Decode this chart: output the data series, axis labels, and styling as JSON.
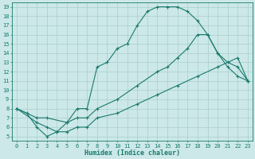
{
  "title": "",
  "xlabel": "Humidex (Indice chaleur)",
  "xlim": [
    -0.5,
    23.5
  ],
  "ylim": [
    4.5,
    19.5
  ],
  "xticks": [
    0,
    1,
    2,
    3,
    4,
    5,
    6,
    7,
    8,
    9,
    10,
    11,
    12,
    13,
    14,
    15,
    16,
    17,
    18,
    19,
    20,
    21,
    22,
    23
  ],
  "yticks": [
    5,
    6,
    7,
    8,
    9,
    10,
    11,
    12,
    13,
    14,
    15,
    16,
    17,
    18,
    19
  ],
  "bg_color": "#cce8e8",
  "line_color": "#1a7a6e",
  "grid_color": "#aacece",
  "lines": [
    {
      "x": [
        0,
        1,
        2,
        3,
        4,
        5,
        6,
        7,
        8,
        9,
        10,
        11,
        12,
        13,
        14,
        15,
        16,
        17,
        18,
        19,
        20,
        21,
        22,
        23
      ],
      "y": [
        8,
        7.5,
        6,
        5,
        5.5,
        6.5,
        8,
        8,
        12.5,
        13,
        14.5,
        15,
        17,
        18.5,
        19,
        19,
        19,
        18.5,
        17.5,
        16,
        14,
        12.5,
        11.5,
        11
      ]
    },
    {
      "x": [
        0,
        2,
        3,
        5,
        6,
        7,
        8,
        10,
        12,
        14,
        15,
        16,
        17,
        18,
        19,
        20,
        21,
        22,
        23
      ],
      "y": [
        8,
        7,
        7,
        6.5,
        7,
        7,
        8,
        9,
        10.5,
        12,
        12.5,
        13.5,
        14.5,
        16,
        16,
        14,
        13,
        12.5,
        11
      ]
    },
    {
      "x": [
        0,
        2,
        3,
        4,
        5,
        6,
        7,
        8,
        10,
        12,
        14,
        16,
        18,
        20,
        22,
        23
      ],
      "y": [
        8,
        6.5,
        6,
        5.5,
        5.5,
        6,
        6,
        7,
        7.5,
        8.5,
        9.5,
        10.5,
        11.5,
        12.5,
        13.5,
        11
      ]
    }
  ]
}
